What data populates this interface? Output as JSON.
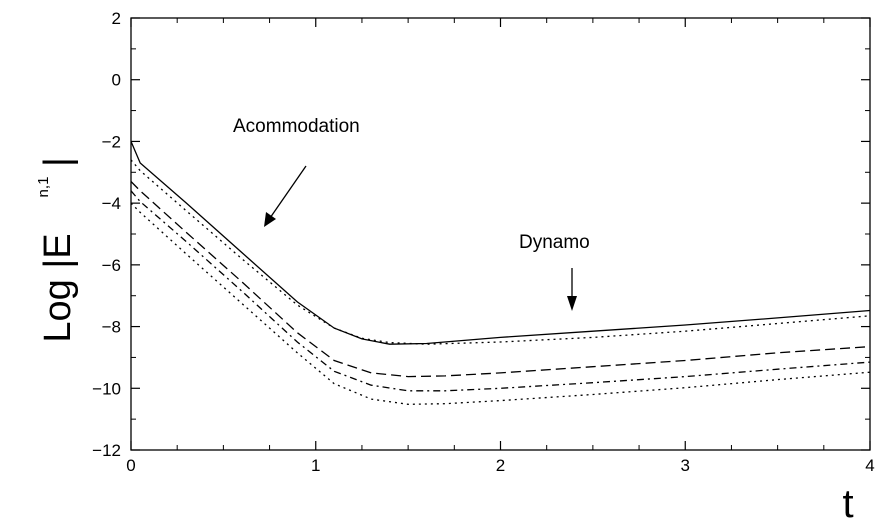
{
  "chart_data": {
    "type": "line",
    "title": "",
    "xlabel": "t",
    "ylabel": {
      "main": "Log |E",
      "superscript": "n,1",
      "close": "|"
    },
    "xlim": [
      0,
      4
    ],
    "ylim": [
      -12,
      2
    ],
    "x_ticks": [
      0,
      1,
      2,
      3,
      4
    ],
    "y_ticks": [
      -12,
      -10,
      -8,
      -6,
      -4,
      -2,
      0,
      2
    ],
    "x_tick_labels": [
      "0",
      "1",
      "2",
      "3",
      "4"
    ],
    "y_tick_labels": [
      "−12",
      "−10",
      "−8",
      "−6",
      "−4",
      "−2",
      "0",
      "2"
    ],
    "grid": false,
    "legend": "none",
    "annotations": [
      {
        "text": "Acommodation",
        "points_to": {
          "x": 0.72,
          "y": -4.7
        }
      },
      {
        "text": "Dynamo",
        "points_to": {
          "x": 2.4,
          "y": -8.2
        }
      }
    ],
    "series": [
      {
        "style": "solid",
        "x": [
          0,
          0.05,
          0.3,
          0.6,
          0.9,
          1.1,
          1.25,
          1.4,
          1.6,
          2.0,
          2.5,
          3.0,
          3.5,
          4.0
        ],
        "y": [
          -2.0,
          -2.7,
          -4.0,
          -5.6,
          -7.2,
          -8.05,
          -8.4,
          -8.57,
          -8.55,
          -8.35,
          -8.15,
          -7.95,
          -7.72,
          -7.48
        ]
      },
      {
        "style": "dotted",
        "x": [
          0,
          0.05,
          0.3,
          0.6,
          0.9,
          1.1,
          1.25,
          1.4,
          1.6,
          2.0,
          2.5,
          3.0,
          3.5,
          4.0
        ],
        "y": [
          -2.6,
          -2.95,
          -4.25,
          -5.8,
          -7.3,
          -8.05,
          -8.38,
          -8.52,
          -8.57,
          -8.5,
          -8.35,
          -8.15,
          -7.9,
          -7.65
        ]
      },
      {
        "style": "dashed",
        "x": [
          0,
          0.05,
          0.3,
          0.6,
          0.9,
          1.1,
          1.3,
          1.5,
          1.7,
          2.0,
          2.5,
          3.0,
          3.5,
          4.0
        ],
        "y": [
          -3.3,
          -3.6,
          -4.95,
          -6.55,
          -8.2,
          -9.1,
          -9.5,
          -9.62,
          -9.6,
          -9.5,
          -9.3,
          -9.1,
          -8.85,
          -8.65
        ]
      },
      {
        "style": "dashdot",
        "x": [
          0,
          0.05,
          0.3,
          0.6,
          0.9,
          1.1,
          1.3,
          1.5,
          1.7,
          2.0,
          2.5,
          3.0,
          3.5,
          4.0
        ],
        "y": [
          -3.6,
          -3.95,
          -5.25,
          -6.85,
          -8.5,
          -9.45,
          -9.9,
          -10.08,
          -10.08,
          -10.0,
          -9.82,
          -9.62,
          -9.38,
          -9.15
        ]
      },
      {
        "style": "dotted",
        "x": [
          0,
          0.05,
          0.3,
          0.6,
          0.9,
          1.1,
          1.3,
          1.5,
          1.7,
          2.0,
          2.5,
          3.0,
          3.5,
          4.0
        ],
        "y": [
          -4.0,
          -4.3,
          -5.65,
          -7.25,
          -8.85,
          -9.85,
          -10.35,
          -10.52,
          -10.5,
          -10.4,
          -10.2,
          -9.98,
          -9.72,
          -9.48
        ]
      }
    ]
  }
}
